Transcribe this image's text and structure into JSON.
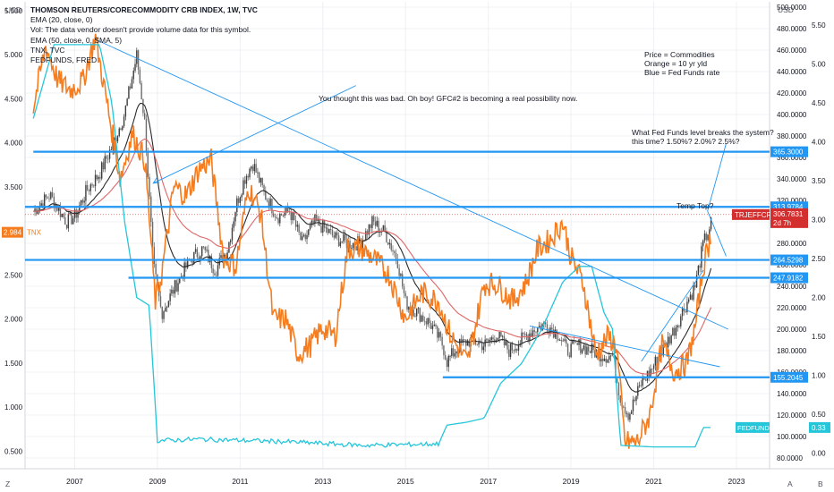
{
  "legend": {
    "title": "THOMSON REUTERS/CORECOMMODITY CRB INDEX, 1W, TVC",
    "ema20": "EMA (20, close, 0)",
    "vol": "Vol: The data vendor doesn't provide volume data for this symbol.",
    "ema50": "EMA (50, close, 0, SMA, 5)",
    "tnx": "TNX, TVC",
    "fedfunds": "FEDFUNDS, FRED"
  },
  "annotations": {
    "gfc": "You thought this was bad.   Oh boy!  GFC#2 is becoming a real possibility now.",
    "legend_note": [
      "Price = Commodities",
      "Orange = 10 yr yld",
      "Blue = Fed Funds rate"
    ],
    "question_1": "What Fed Funds level breaks the system?",
    "question_2": "this time?  1.50%? 2.0%? 2.5%?",
    "temp_top": "Temp Top?"
  },
  "corners": {
    "usd_left": "USD",
    "usd_right": "USD",
    "z": "Z",
    "a": "A",
    "b": "B"
  },
  "colors": {
    "crb": "#4a4a4a",
    "ema20": "#2a2a2a",
    "ema50": "#e06666",
    "tnx": "#f57c1f",
    "fedfunds": "#26c6da",
    "hline": "#2196f3",
    "up_candle": "#26a69a",
    "down_candle": "#ef5350",
    "price_tag": "#d32f2f"
  },
  "chart_data": {
    "type": "line",
    "x_axis": {
      "labels": [
        "2007",
        "2009",
        "2011",
        "2013",
        "2015",
        "2017",
        "2019",
        "2021",
        "2023"
      ],
      "range": [
        2005.8,
        2023.8
      ]
    },
    "left_axis": {
      "label": "USD",
      "range": [
        0.3,
        5.6
      ],
      "ticks": [
        "0.500",
        "1.000",
        "1.500",
        "2.000",
        "2.500",
        "3.000",
        "3.500",
        "4.000",
        "4.500",
        "5.000",
        "5.500"
      ]
    },
    "price_axis": {
      "label": "USD",
      "range": [
        70,
        505
      ],
      "ticks": [
        "80.0000",
        "100.0000",
        "120.0000",
        "140.0000",
        "160.0000",
        "180.0000",
        "200.0000",
        "220.0000",
        "240.0000",
        "260.0000",
        "280.0000",
        "300.0000",
        "320.0000",
        "340.0000",
        "360.0000",
        "380.0000",
        "400.0000",
        "420.0000",
        "440.0000",
        "460.0000",
        "480.0000",
        "500.0000"
      ]
    },
    "fed_axis": {
      "range": [
        -0.2,
        5.8
      ],
      "ticks": [
        "0.00",
        "0.50",
        "1.00",
        "1.50",
        "2.00",
        "2.50",
        "3.00",
        "3.50",
        "4.00",
        "4.50",
        "5.00",
        "5.50"
      ]
    },
    "series": [
      {
        "name": "THOMSON REUTERS/CORECOMMODITY CRB INDEX",
        "axis": "price",
        "x": [
          2006.0,
          2006.4,
          2006.8,
          2007.0,
          2007.3,
          2007.6,
          2007.9,
          2008.2,
          2008.5,
          2008.7,
          2008.9,
          2009.1,
          2009.3,
          2009.5,
          2009.8,
          2010.1,
          2010.4,
          2010.7,
          2010.9,
          2011.1,
          2011.3,
          2011.6,
          2011.9,
          2012.2,
          2012.5,
          2012.8,
          2013.0,
          2013.3,
          2013.6,
          2013.9,
          2014.2,
          2014.5,
          2014.8,
          2015.0,
          2015.3,
          2015.6,
          2015.9,
          2016.0,
          2016.3,
          2016.6,
          2016.9,
          2017.2,
          2017.5,
          2017.8,
          2018.1,
          2018.4,
          2018.7,
          2018.9,
          2019.2,
          2019.5,
          2019.8,
          2020.0,
          2020.2,
          2020.4,
          2020.7,
          2020.9,
          2021.2,
          2021.5,
          2021.8,
          2022.0,
          2022.2,
          2022.4
        ],
        "values": [
          310,
          325,
          300,
          305,
          330,
          345,
          370,
          400,
          455,
          390,
          260,
          215,
          230,
          245,
          265,
          275,
          255,
          275,
          315,
          340,
          355,
          325,
          305,
          310,
          280,
          300,
          295,
          285,
          280,
          280,
          300,
          290,
          265,
          225,
          215,
          205,
          185,
          170,
          185,
          190,
          185,
          195,
          180,
          190,
          200,
          205,
          195,
          180,
          185,
          180,
          175,
          175,
          135,
          120,
          150,
          160,
          180,
          200,
          225,
          240,
          280,
          300
        ]
      },
      {
        "name": "TNX",
        "axis": "left",
        "x": [
          2006.0,
          2006.3,
          2006.6,
          2006.9,
          2007.2,
          2007.5,
          2007.8,
          2008.1,
          2008.4,
          2008.7,
          2008.95,
          2009.1,
          2009.4,
          2009.7,
          2010.0,
          2010.3,
          2010.6,
          2010.9,
          2011.2,
          2011.5,
          2011.8,
          2012.1,
          2012.4,
          2012.7,
          2013.0,
          2013.3,
          2013.6,
          2013.9,
          2014.2,
          2014.6,
          2015.0,
          2015.4,
          2015.8,
          2016.1,
          2016.5,
          2016.9,
          2017.2,
          2017.6,
          2017.9,
          2018.2,
          2018.5,
          2018.8,
          2019.0,
          2019.3,
          2019.6,
          2019.9,
          2020.1,
          2020.3,
          2020.6,
          2020.9,
          2021.2,
          2021.5,
          2021.8,
          2022.0,
          2022.2,
          2022.4
        ],
        "values": [
          4.4,
          5.1,
          4.7,
          4.6,
          4.7,
          5.2,
          4.4,
          3.6,
          4.1,
          3.8,
          2.2,
          2.5,
          3.5,
          3.4,
          3.7,
          3.8,
          2.7,
          2.6,
          3.5,
          3.2,
          2.0,
          2.0,
          1.6,
          1.7,
          1.9,
          1.8,
          2.8,
          2.8,
          2.7,
          2.5,
          2.0,
          2.3,
          2.2,
          1.8,
          1.5,
          2.4,
          2.4,
          2.2,
          2.4,
          2.8,
          2.9,
          3.1,
          2.7,
          2.4,
          1.6,
          1.8,
          1.7,
          0.6,
          0.6,
          0.9,
          1.7,
          1.4,
          1.5,
          1.9,
          2.6,
          2.98
        ]
      },
      {
        "name": "FEDFUNDS",
        "axis": "fed",
        "x": [
          2006.0,
          2006.5,
          2007.0,
          2007.6,
          2007.9,
          2008.2,
          2008.5,
          2008.8,
          2009.0,
          2010.0,
          2012.0,
          2014.0,
          2015.8,
          2016.0,
          2016.5,
          2016.9,
          2017.3,
          2017.8,
          2018.3,
          2018.8,
          2019.2,
          2019.5,
          2019.8,
          2020.0,
          2020.2,
          2021.0,
          2022.0,
          2022.2,
          2022.4
        ],
        "values": [
          4.3,
          5.25,
          5.25,
          5.25,
          4.5,
          3.0,
          2.0,
          1.9,
          0.16,
          0.18,
          0.15,
          0.1,
          0.12,
          0.36,
          0.4,
          0.45,
          0.9,
          1.15,
          1.6,
          2.2,
          2.4,
          2.4,
          1.8,
          1.6,
          0.1,
          0.08,
          0.08,
          0.33,
          0.33
        ]
      }
    ],
    "levels": [
      {
        "label": "365.3000",
        "value": 365.3
      },
      {
        "label": "313.9784",
        "value": 313.9784
      },
      {
        "label": "264.5298",
        "value": 264.5298
      },
      {
        "label": "247.9182",
        "value": 247.9182
      },
      {
        "label": "155.2045",
        "value": 155.2045
      }
    ],
    "tags": {
      "tnx_value": "2.984",
      "tnx_name": "TNX",
      "crb_name": "TRJEFFCRB",
      "crb_value": "306.7831",
      "crb_time": "2d 7h",
      "fed_name": "FEDFUNDS",
      "fed_value": "0.33"
    }
  }
}
